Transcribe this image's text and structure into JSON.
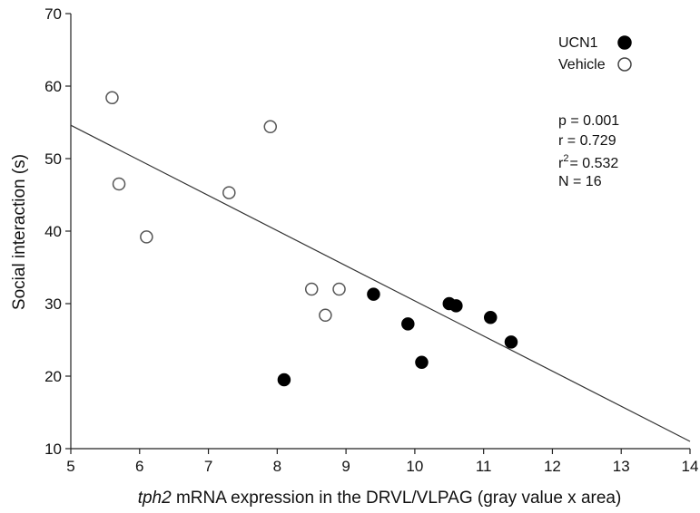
{
  "chart_data": {
    "type": "scatter",
    "xlabel_italic": "tph2",
    "xlabel_rest": " mRNA expression in the DRVL/VLPAG (gray value x area)",
    "ylabel": "Social interaction (s)",
    "xlim": [
      5,
      14
    ],
    "ylim": [
      10,
      70
    ],
    "xticks": [
      5,
      6,
      7,
      8,
      9,
      10,
      11,
      12,
      13,
      14
    ],
    "yticks": [
      10,
      20,
      30,
      40,
      50,
      60,
      70
    ],
    "grid": false,
    "legend_position": "top-right",
    "series": [
      {
        "name": "UCN1",
        "marker": "filled-circle",
        "color": "#000000",
        "points": [
          {
            "x": 8.1,
            "y": 19.5
          },
          {
            "x": 9.4,
            "y": 31.3
          },
          {
            "x": 9.9,
            "y": 27.2
          },
          {
            "x": 10.1,
            "y": 21.9
          },
          {
            "x": 10.5,
            "y": 30.0
          },
          {
            "x": 10.6,
            "y": 29.7
          },
          {
            "x": 11.1,
            "y": 28.1
          },
          {
            "x": 11.4,
            "y": 24.7
          }
        ]
      },
      {
        "name": "Vehicle",
        "marker": "open-circle",
        "color": "#000000",
        "points": [
          {
            "x": 5.6,
            "y": 58.4
          },
          {
            "x": 5.7,
            "y": 46.5
          },
          {
            "x": 6.1,
            "y": 39.2
          },
          {
            "x": 7.3,
            "y": 45.3
          },
          {
            "x": 7.9,
            "y": 54.4
          },
          {
            "x": 8.5,
            "y": 32.0
          },
          {
            "x": 8.7,
            "y": 28.4
          },
          {
            "x": 8.9,
            "y": 32.0
          }
        ]
      }
    ],
    "regression_line": {
      "x0": 5,
      "y0": 54.6,
      "x1": 14,
      "y1": 11.0
    },
    "stats": {
      "p": "p = 0.001",
      "r": "r = 0.729",
      "r2_prefix": "r",
      "r2_sup": "2",
      "r2_value": "= 0.532",
      "n": "N = 16"
    }
  }
}
